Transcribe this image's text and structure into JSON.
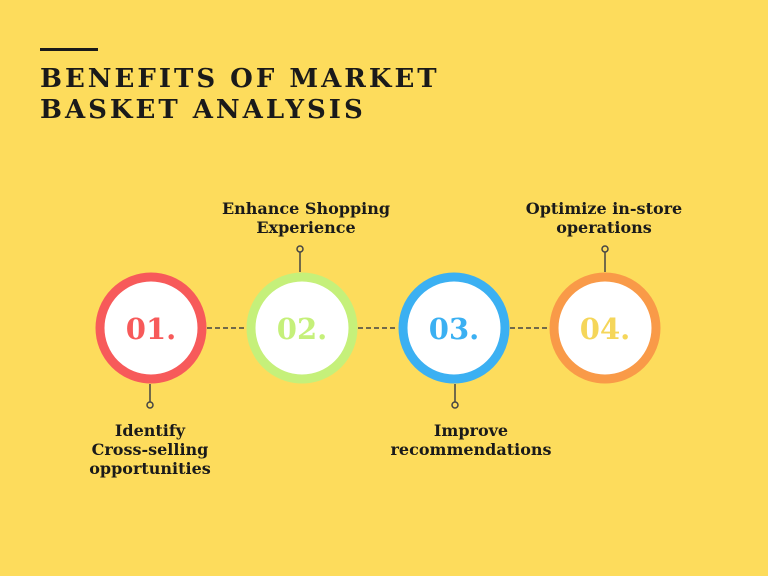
{
  "header": {
    "title_lines": [
      "BENEFITS OF MARKET",
      "BASKET ANALYSIS"
    ]
  },
  "colors": {
    "background": "#FDDC5C",
    "text": "#1a1a1a",
    "connector": "#444444"
  },
  "steps": [
    {
      "number": "01.",
      "color": "#F75A5A",
      "label_lines": [
        "Identify",
        "Cross-selling",
        "opportunities"
      ],
      "label_position": "below"
    },
    {
      "number": "02.",
      "color": "#C5F07A",
      "label_lines": [
        "Enhance Shopping",
        "Experience"
      ],
      "label_position": "above"
    },
    {
      "number": "03.",
      "color": "#3BB0F2",
      "label_lines": [
        "Improve",
        "recommendations"
      ],
      "label_position": "below"
    },
    {
      "number": "04.",
      "color": "#F99A48",
      "label_lines": [
        "Optimize in-store",
        "operations"
      ],
      "label_position": "above"
    }
  ]
}
